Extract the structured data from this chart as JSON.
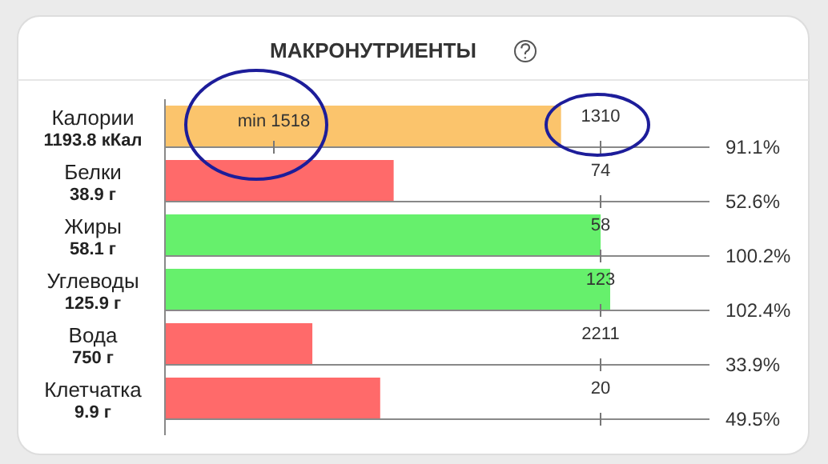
{
  "chart_data": {
    "type": "bar",
    "orientation": "horizontal",
    "title": "МАКРОНУТРИЕНТЫ",
    "categories": [
      "Калории\n1193.8 кКал",
      "Белки\n38.9 г",
      "Жиры\n58.1 г",
      "Углеводы\n125.9 г",
      "Вода\n750 г",
      "Клетчатка\n9.9 г"
    ],
    "values": [
      91.1,
      52.6,
      100.2,
      102.4,
      33.9,
      49.5
    ],
    "colors": [
      "#fbc46c",
      "#ff6a6a",
      "#66f06c",
      "#66f06c",
      "#ff6a6a",
      "#ff6a6a"
    ],
    "value_labels": [
      "91.1%",
      "52.6%",
      "100.2%",
      "102.4%",
      "33.9%",
      "49.5%"
    ],
    "annotations": [
      "min 1518",
      "1310",
      "74",
      "58",
      "123",
      "2211",
      "20"
    ]
  }
}
